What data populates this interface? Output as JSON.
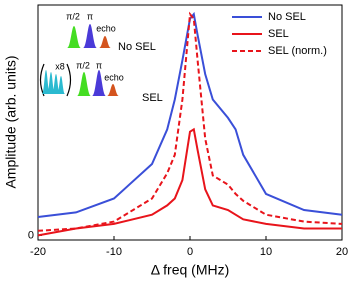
{
  "chart_data": {
    "type": "line",
    "xlabel": "Δ freq (MHz)",
    "ylabel": "Amplitude (arb. units)",
    "x": [
      -20,
      -15,
      -10,
      -5,
      -3,
      -2,
      -1,
      0,
      0.5,
      1,
      2,
      3,
      5,
      6,
      7,
      10,
      15,
      20
    ],
    "series": [
      {
        "name": "No SEL",
        "color": "#3a4fd8",
        "style": "solid",
        "values": [
          0.08,
          0.1,
          0.16,
          0.31,
          0.46,
          0.59,
          0.76,
          0.94,
          0.96,
          0.87,
          0.7,
          0.59,
          0.51,
          0.46,
          0.35,
          0.18,
          0.11,
          0.09
        ]
      },
      {
        "name": "SEL",
        "color": "#e8141b",
        "style": "solid",
        "values": [
          0.0,
          0.03,
          0.05,
          0.09,
          0.13,
          0.16,
          0.24,
          0.45,
          0.46,
          0.37,
          0.2,
          0.13,
          0.11,
          0.09,
          0.07,
          0.05,
          0.03,
          0.03
        ]
      },
      {
        "name": "SEL (norm.)",
        "color": "#e8141b",
        "style": "dashed",
        "values": [
          0.02,
          0.03,
          0.06,
          0.16,
          0.27,
          0.35,
          0.59,
          0.96,
          0.94,
          0.76,
          0.42,
          0.26,
          0.22,
          0.18,
          0.15,
          0.09,
          0.06,
          0.05
        ]
      }
    ],
    "xlim": [
      -20,
      20
    ],
    "xticks": [
      -20,
      -10,
      0,
      10,
      20
    ],
    "ylim": [
      -0.02,
      1.0
    ],
    "yticks": [
      0
    ],
    "legend": "upper right",
    "insets": [
      {
        "title": "No SEL",
        "pulse_labels": [
          "π/2",
          "π",
          "echo"
        ]
      },
      {
        "title": "SEL",
        "pulse_labels": [
          "x8",
          "π/2",
          "π",
          "echo"
        ]
      }
    ]
  }
}
